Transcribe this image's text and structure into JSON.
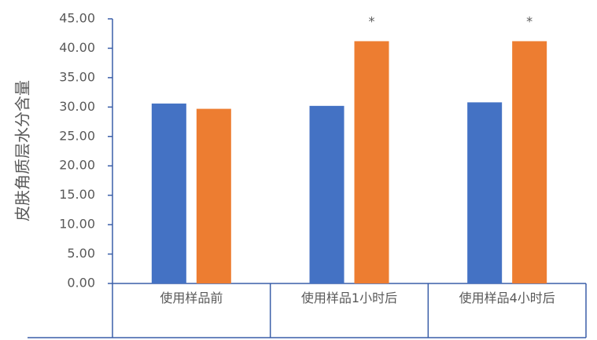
{
  "chart_data": {
    "type": "bar",
    "y_label": "皮肤角质层水分含量",
    "categories": [
      "使用样品前",
      "使用样品1小时后",
      "使用样品4小时后"
    ],
    "series": [
      {
        "color": "#4472c4",
        "values": [
          30.6,
          30.2,
          30.8
        ]
      },
      {
        "color": "#ed7d31",
        "values": [
          29.7,
          41.2,
          41.2
        ]
      }
    ],
    "annotations": [
      null,
      "*",
      "*"
    ],
    "ylim": [
      0,
      45
    ],
    "yticks": [
      {
        "value": 0,
        "label": "0.00"
      },
      {
        "value": 5,
        "label": "5.00"
      },
      {
        "value": 10,
        "label": "10.00"
      },
      {
        "value": 15,
        "label": "15.00"
      },
      {
        "value": 20,
        "label": "20.00"
      },
      {
        "value": 25,
        "label": "25.00"
      },
      {
        "value": 30,
        "label": "30.00"
      },
      {
        "value": 35,
        "label": "35.00"
      },
      {
        "value": 40,
        "label": "40.00"
      },
      {
        "value": 45,
        "label": "45.00"
      }
    ]
  }
}
